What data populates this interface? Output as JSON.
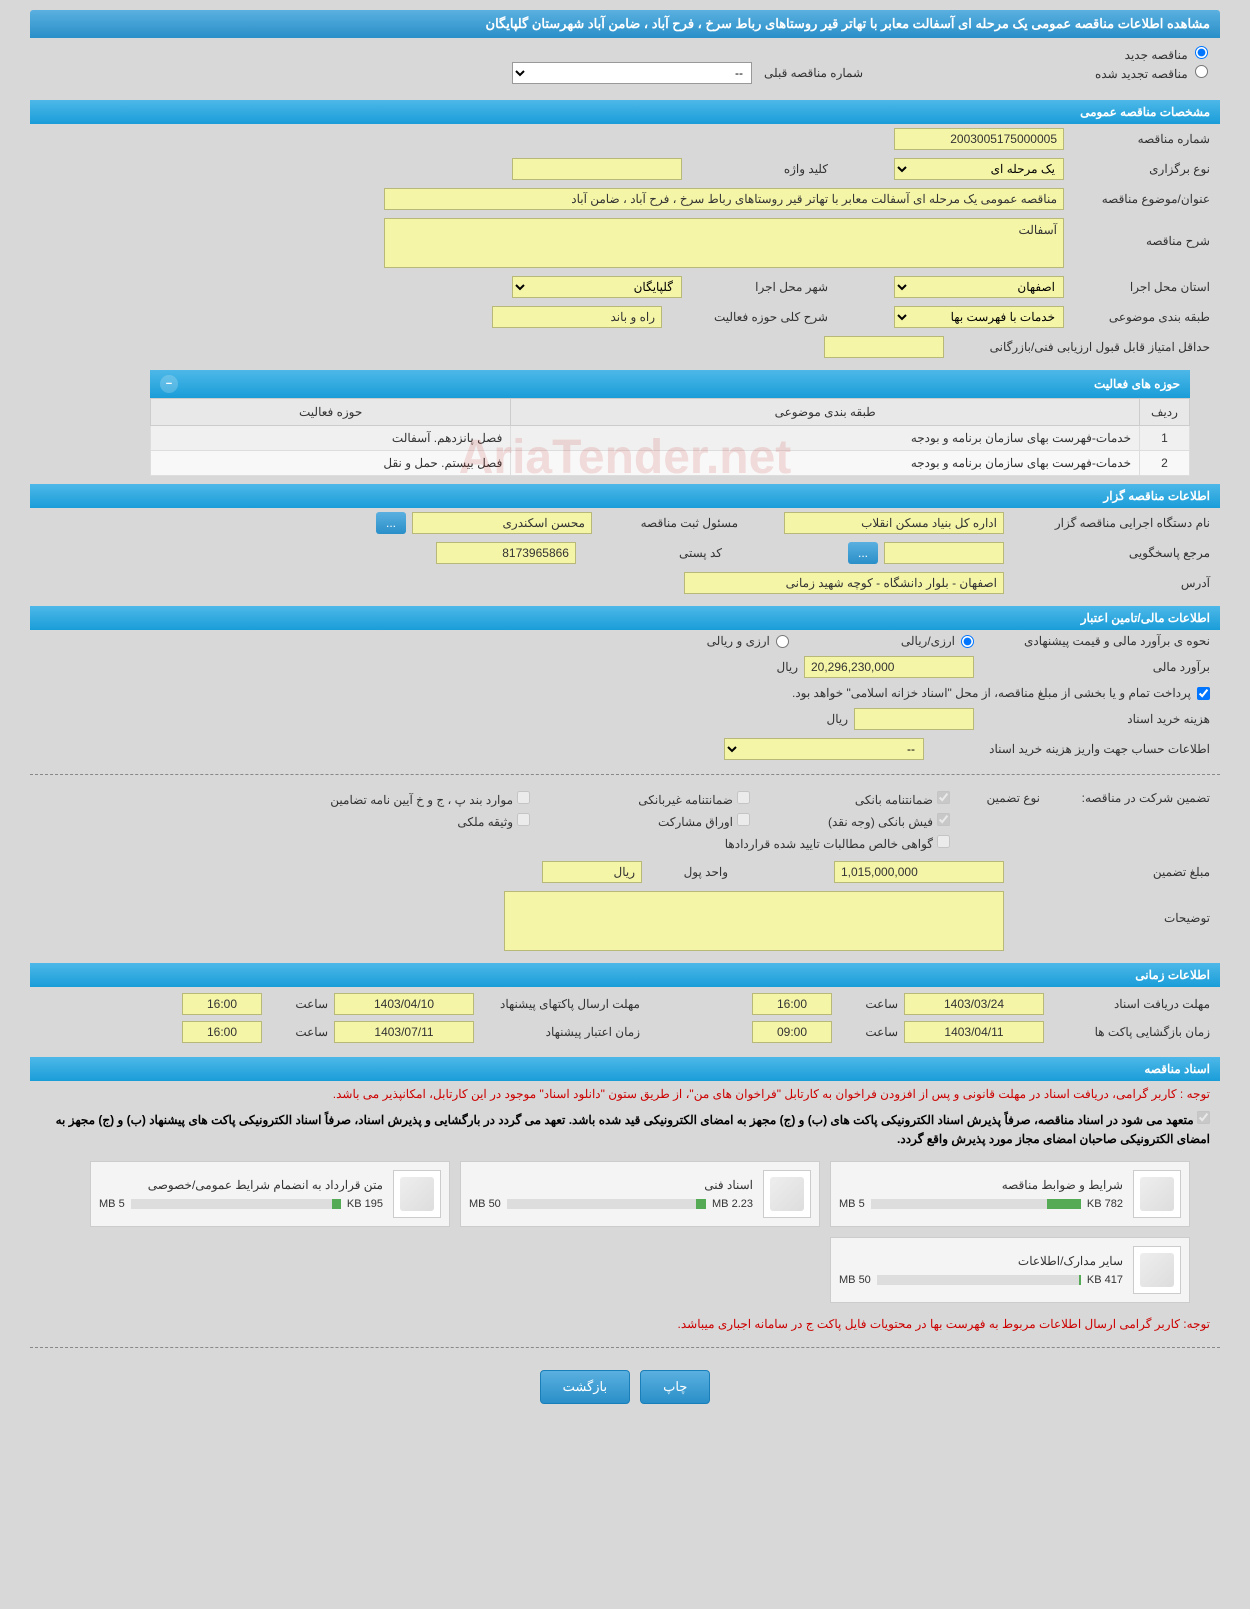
{
  "header": {
    "title": "مشاهده اطلاعات مناقصه عمومی یک مرحله ای آسفالت معابر با تهاتر قیر روستاهای رباط سرخ ، فرح آباد ، ضامن آباد شهرستان گلپایگان"
  },
  "radio": {
    "new_tender": "مناقصه جدید",
    "renewed_tender": "مناقصه تجدید شده",
    "prev_number_label": "شماره مناقصه قبلی",
    "prev_number_value": "--"
  },
  "general": {
    "section_title": "مشخصات مناقصه عمومی",
    "number_label": "شماره مناقصه",
    "number_value": "2003005175000005",
    "holding_type_label": "نوع برگزاری",
    "holding_type_value": "یک مرحله ای",
    "keyword_label": "کلید واژه",
    "keyword_value": "",
    "subject_label": "عنوان/موضوع مناقصه",
    "subject_value": "مناقصه عمومی یک مرحله ای آسفالت  معابر با تهاتر  قیر روستاهای رباط سرخ ، فرح آباد ، ضامن آباد",
    "desc_label": "شرح مناقصه",
    "desc_value": "آسفالت",
    "province_label": "استان محل اجرا",
    "province_value": "اصفهان",
    "city_label": "شهر محل اجرا",
    "city_value": "گلپایگان",
    "category_label": "طبقه بندی موضوعی",
    "category_value": "خدمات با فهرست بها",
    "scope_label": "شرح کلی حوزه فعالیت",
    "scope_value": "راه و باند",
    "min_score_label": "حداقل امتیاز قابل قبول ارزیابی فنی/بازرگانی",
    "min_score_value": ""
  },
  "activities": {
    "title": "حوزه های فعالیت",
    "cols": {
      "row": "ردیف",
      "category": "طبقه بندی موضوعی",
      "scope": "حوزه فعالیت"
    },
    "rows": [
      {
        "n": "1",
        "cat": "خدمات-فهرست بهای سازمان برنامه و بودجه",
        "scope": "فصل پانزدهم. آسفالت"
      },
      {
        "n": "2",
        "cat": "خدمات-فهرست بهای سازمان برنامه و بودجه",
        "scope": "فصل بیستم. حمل و نقل"
      }
    ]
  },
  "organizer": {
    "section_title": "اطلاعات مناقصه گزار",
    "exec_label": "نام دستگاه اجرایی مناقصه گزار",
    "exec_value": "اداره کل بنیاد مسکن انقلاب",
    "reg_label": "مسئول ثبت مناقصه",
    "reg_value": "محسن اسکندری",
    "more_btn": "...",
    "contact_label": "مرجع پاسخگویی",
    "contact_value": "",
    "contact_btn": "...",
    "postal_label": "کد پستی",
    "postal_value": "8173965866",
    "address_label": "آدرس",
    "address_value": "اصفهان - بلوار دانشگاه - کوچه شهید زمانی"
  },
  "financial": {
    "section_title": "اطلاعات مالی/تامین اعتبار",
    "est_method_label": "نحوه ی برآورد مالی و قیمت پیشنهادی",
    "opt_currency": "ارزی/ریالی",
    "opt_both": "ارزی و ریالی",
    "est_label": "برآورد مالی",
    "est_value": "20,296,230,000",
    "currency_unit": "ریال",
    "payment_note": "پرداخت تمام و یا بخشی از مبلغ مناقصه، از محل \"اسناد خزانه اسلامی\" خواهد بود.",
    "doc_cost_label": "هزینه خرید اسناد",
    "doc_cost_value": "",
    "deposit_info_label": "اطلاعات حساب جهت واریز هزینه خرید اسناد",
    "deposit_info_value": "--"
  },
  "guarantee": {
    "intro_label": "تضمین شرکت در مناقصه:",
    "type_label": "نوع تضمین",
    "checks": {
      "bank_guarantee": "ضمانتنامه بانکی",
      "nonbank_guarantee": "ضمانتنامه غیربانکی",
      "bylaw_items": "موارد بند پ ، ج و خ آیین نامه تضامین",
      "bank_receipt": "فیش بانکی (وجه نقد)",
      "participation_bonds": "اوراق مشارکت",
      "property_deposit": "وثیقه ملکی",
      "receivables_cert": "گواهی خالص مطالبات تایید شده قراردادها"
    },
    "amount_label": "مبلغ تضمین",
    "amount_value": "1,015,000,000",
    "unit_label": "واحد پول",
    "unit_value": "ریال",
    "notes_label": "توضیحات",
    "notes_value": ""
  },
  "timing": {
    "section_title": "اطلاعات زمانی",
    "receive_deadline_label": "مهلت دریافت اسناد",
    "receive_deadline_date": "1403/03/24",
    "receive_deadline_time": "16:00",
    "submit_deadline_label": "مهلت ارسال پاکتهای پیشنهاد",
    "submit_deadline_date": "1403/04/10",
    "submit_deadline_time": "16:00",
    "opening_label": "زمان بازگشایی پاکت ها",
    "opening_date": "1403/04/11",
    "opening_time": "09:00",
    "validity_label": "زمان اعتبار پیشنهاد",
    "validity_date": "1403/07/11",
    "validity_time": "16:00",
    "time_label": "ساعت"
  },
  "docs": {
    "section_title": "اسناد مناقصه",
    "note1": "توجه : کاربر گرامی، دریافت اسناد در مهلت قانونی و پس از افزودن فراخوان به کارتابل \"فراخوان های من\"، از طریق ستون \"دانلود اسناد\" موجود در این کارتابل، امکانپذیر می باشد.",
    "note2": "متعهد می شود در اسناد مناقصه، صرفاً پذیرش اسناد الکترونیکی پاکت های (ب) و (ج) مجهز به امضای الکترونیکی قید شده باشد. تعهد می گردد در بارگشایی و پذیرش اسناد، صرفاً اسناد الکترونیکی پاکت های پیشنهاد (ب) و (ج) مجهز به امضای الکترونیکی صاحبان امضای مجاز مورد پذیرش واقع گردد.",
    "files": [
      {
        "title": "شرایط و ضوابط مناقصه",
        "used": "782 KB",
        "total": "5 MB",
        "pct": 16
      },
      {
        "title": "اسناد فنی",
        "used": "2.23 MB",
        "total": "50 MB",
        "pct": 5
      },
      {
        "title": "متن قرارداد به انضمام شرایط عمومی/خصوصی",
        "used": "195 KB",
        "total": "5 MB",
        "pct": 4
      },
      {
        "title": "سایر مدارک/اطلاعات",
        "used": "417 KB",
        "total": "50 MB",
        "pct": 1
      }
    ],
    "note3": "توجه: کاربر گرامی ارسال اطلاعات مربوط به فهرست بها در محتویات فایل پاکت ج در سامانه اجباری میباشد."
  },
  "buttons": {
    "print": "چاپ",
    "back": "بازگشت"
  },
  "watermark": "AriaTender.net",
  "colors": {
    "header_bg": "#2a8fc8",
    "field_bg": "#f5f5a8",
    "page_bg": "#d8d8d8",
    "red": "#c00"
  }
}
